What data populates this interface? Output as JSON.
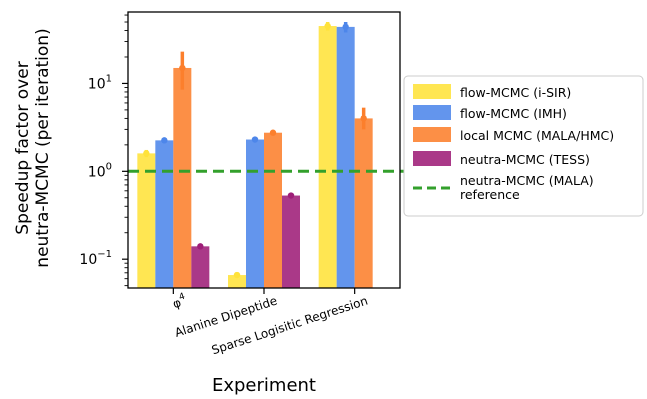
{
  "chart_data": {
    "type": "bar",
    "title": "",
    "xlabel": "Experiment",
    "ylabel_lines": [
      "Speedup factor over",
      "neutra-MCMC (per iteration)"
    ],
    "y_scale": "log",
    "ylim": [
      0.047,
      65
    ],
    "yticks": [
      {
        "value": 0.1,
        "base": "10",
        "exp": "−1"
      },
      {
        "value": 1,
        "base": "10",
        "exp": "0"
      },
      {
        "value": 10,
        "base": "10",
        "exp": "1"
      }
    ],
    "categories": [
      {
        "label": "φ",
        "sup": "4"
      },
      {
        "label": "Alanine Dipeptide",
        "sup": ""
      },
      {
        "label": "Sparse Logisitic Regression",
        "sup": ""
      }
    ],
    "series": [
      {
        "name": "flow-MCMC (i-SIR)",
        "color": "#ffe23a",
        "values": [
          1.6,
          0.066,
          45
        ],
        "err_low": [
          1.45,
          0.062,
          40
        ],
        "err_high": [
          1.75,
          0.071,
          50
        ]
      },
      {
        "name": "flow-MCMC (IMH)",
        "color": "#4d86ea",
        "values": [
          2.25,
          2.3,
          44
        ],
        "err_low": [
          2.15,
          2.2,
          38
        ],
        "err_high": [
          2.35,
          2.4,
          50
        ]
      },
      {
        "name": "local MCMC (MALA/HMC)",
        "color": "#fc7f2c",
        "values": [
          15,
          2.75,
          4.0
        ],
        "err_low": [
          8.5,
          2.6,
          3.0
        ],
        "err_high": [
          23,
          2.9,
          5.3
        ]
      },
      {
        "name": "neutra-MCMC (TESS)",
        "color": "#9e1e78",
        "values": [
          0.14,
          0.53,
          null
        ],
        "err_low": [
          0.135,
          0.51,
          null
        ],
        "err_high": [
          0.145,
          0.55,
          null
        ]
      }
    ],
    "reference": {
      "name": "neutra-MCMC (MALA)\nreference",
      "value": 1,
      "color": "#33a02c",
      "style": "dashed"
    },
    "legend": {
      "placement": "right"
    }
  }
}
